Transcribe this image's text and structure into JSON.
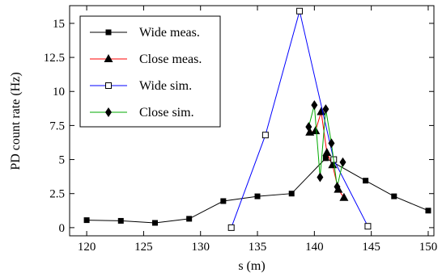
{
  "chart_data": {
    "type": "line",
    "xlabel": "s (m)",
    "ylabel": "PD count rate (Hz)",
    "xlim": [
      118.5,
      150.5
    ],
    "ylim": [
      -0.6,
      16.3
    ],
    "xticks": [
      120,
      125,
      130,
      135,
      140,
      145,
      150
    ],
    "xtick_labels": [
      "120",
      "125",
      "130",
      "135",
      "140",
      "145",
      "150"
    ],
    "yticks": [
      0,
      2.5,
      5,
      7.5,
      10,
      12.5,
      15
    ],
    "ytick_labels": [
      "0",
      "2.5",
      "5",
      "7.5",
      "10",
      "12.5",
      "15"
    ],
    "grid": false,
    "legend_position": "top-left",
    "series": [
      {
        "name": "Wide meas.",
        "color": "#000000",
        "marker": "filled-square",
        "x": [
          120,
          123,
          126,
          129,
          132,
          135,
          138,
          141,
          144.5,
          147,
          150
        ],
        "y": [
          0.55,
          0.5,
          0.35,
          0.65,
          1.95,
          2.3,
          2.5,
          5.1,
          3.45,
          2.3,
          1.25
        ]
      },
      {
        "name": "Close meas.",
        "color": "#ff0000",
        "marker": "filled-triangle",
        "x": [
          139.6,
          140.1,
          140.6,
          141.1,
          141.6,
          142.1,
          142.6
        ],
        "y": [
          7.0,
          7.1,
          8.5,
          5.5,
          4.6,
          2.8,
          2.2
        ]
      },
      {
        "name": "Wide sim.",
        "color": "#0000ff",
        "marker": "open-square",
        "x": [
          132.7,
          135.7,
          138.7,
          141.7,
          144.7
        ],
        "y": [
          0.0,
          6.8,
          15.9,
          5.0,
          0.1
        ]
      },
      {
        "name": "Close sim.",
        "color": "#00aa00",
        "marker": "filled-diamond",
        "x": [
          139.5,
          140.0,
          140.5,
          141.0,
          141.5,
          142.0,
          142.5
        ],
        "y": [
          7.4,
          9.0,
          3.7,
          8.7,
          6.2,
          3.0,
          4.8
        ]
      }
    ]
  }
}
